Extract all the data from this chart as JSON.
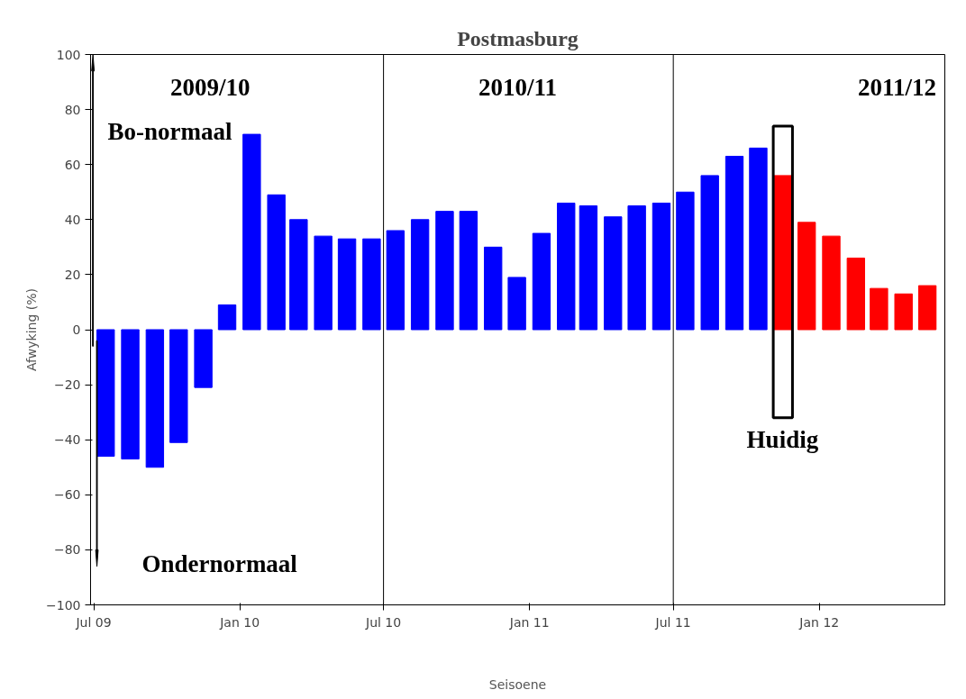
{
  "chart_data": {
    "type": "bar",
    "title": "Postmasburg",
    "xlabel": "Seisoene",
    "ylabel": "Afwyking (%)",
    "x": [
      "2009-07-16",
      "2009-08-16",
      "2009-09-16",
      "2009-10-16",
      "2009-11-16",
      "2009-12-16",
      "2010-01-16",
      "2010-02-16",
      "2010-03-16",
      "2010-04-16",
      "2010-05-16",
      "2010-06-16",
      "2010-07-16",
      "2010-08-16",
      "2010-09-16",
      "2010-10-16",
      "2010-11-16",
      "2010-12-16",
      "2011-01-16",
      "2011-02-16",
      "2011-03-16",
      "2011-04-16",
      "2011-05-16",
      "2011-06-16",
      "2011-07-16",
      "2011-08-16",
      "2011-09-16",
      "2011-10-16",
      "2011-11-16",
      "2011-12-16",
      "2012-01-16",
      "2012-02-16",
      "2012-03-16",
      "2012-04-16",
      "2012-05-16"
    ],
    "values": [
      -46,
      -47,
      -50,
      -41,
      -21,
      9,
      71,
      49,
      40,
      34,
      33,
      33,
      36,
      40,
      43,
      43,
      30,
      19,
      35,
      46,
      45,
      41,
      45,
      46,
      50,
      56,
      63,
      66,
      56,
      39,
      34,
      26,
      15,
      13,
      16
    ],
    "colors": [
      "#0000ff",
      "#0000ff",
      "#0000ff",
      "#0000ff",
      "#0000ff",
      "#0000ff",
      "#0000ff",
      "#0000ff",
      "#0000ff",
      "#0000ff",
      "#0000ff",
      "#0000ff",
      "#0000ff",
      "#0000ff",
      "#0000ff",
      "#0000ff",
      "#0000ff",
      "#0000ff",
      "#0000ff",
      "#0000ff",
      "#0000ff",
      "#0000ff",
      "#0000ff",
      "#0000ff",
      "#0000ff",
      "#0000ff",
      "#0000ff",
      "#0000ff",
      "#ff0000",
      "#ff0000",
      "#ff0000",
      "#ff0000",
      "#ff0000",
      "#ff0000",
      "#ff0000"
    ],
    "xlim": [
      "2009-06-27",
      "2012-06-07"
    ],
    "xticks": [
      {
        "value": "2009-07-01",
        "label": "Jul 09"
      },
      {
        "value": "2010-01-01",
        "label": "Jan 10"
      },
      {
        "value": "2010-07-01",
        "label": "Jul 10"
      },
      {
        "value": "2011-01-01",
        "label": "Jan 11"
      },
      {
        "value": "2011-07-01",
        "label": "Jul 11"
      },
      {
        "value": "2012-01-01",
        "label": "Jan 12"
      }
    ],
    "ylim": [
      -100,
      100
    ],
    "yticks": [
      -100,
      -80,
      -60,
      -40,
      -20,
      0,
      20,
      40,
      60,
      80,
      100
    ],
    "ref_lines": [
      {
        "axis": "x",
        "value": "2010-07-01",
        "color": "#000000"
      },
      {
        "axis": "x",
        "value": "2011-07-01",
        "color": "#000000"
      }
    ],
    "annotations": [
      "2009/10",
      "2010/11",
      "2011/12",
      "Bo-normaal",
      "Ondernormaal",
      "Huidig"
    ],
    "grid": false
  }
}
